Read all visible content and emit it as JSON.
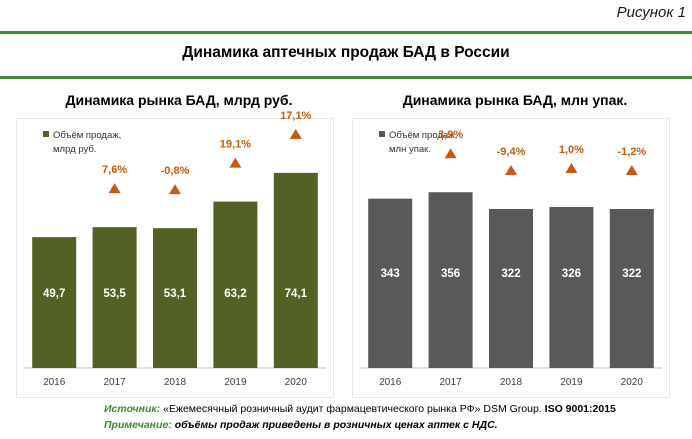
{
  "figure_label": "Рисунок 1",
  "main_title": "Динамика аптечных продаж БАД в России",
  "colors": {
    "rule": "#3f8a2e",
    "green_bar": "#546125",
    "gray_bar": "#595959",
    "marker": "#c55a11",
    "pct_text": "#c55a11",
    "footer_label": "#3f8a2e"
  },
  "chart_data": [
    {
      "type": "bar",
      "title": "Динамика рынка БАД, млрд руб.",
      "legend": [
        "Объём продаж,",
        "млрд руб."
      ],
      "legend_position": "top-left",
      "categories": [
        "2016",
        "2017",
        "2018",
        "2019",
        "2020"
      ],
      "values": [
        49.7,
        53.5,
        53.1,
        63.2,
        74.1
      ],
      "value_labels": [
        "49,7",
        "53,5",
        "53,1",
        "63,2",
        "74,1"
      ],
      "growth_labels": [
        "",
        "7,6%",
        "-0,8%",
        "19,1%",
        "17,1%"
      ],
      "bar_color": "#546125",
      "ylim": [
        0,
        90
      ],
      "grid": false
    },
    {
      "type": "bar",
      "title": "Динамика рынка БАД, млн упак.",
      "legend": [
        "Объём продаж,",
        "млн упак."
      ],
      "legend_position": "top-left",
      "categories": [
        "2016",
        "2017",
        "2018",
        "2019",
        "2020"
      ],
      "values": [
        343,
        356,
        322,
        326,
        322
      ],
      "value_labels": [
        "343",
        "356",
        "322",
        "326",
        "322"
      ],
      "growth_labels": [
        "",
        "3,9%",
        "-9,4%",
        "1,0%",
        "-1,2%"
      ],
      "bar_color": "#595959",
      "ylim": [
        0,
        480
      ],
      "grid": false
    }
  ],
  "footer": {
    "source_label": "Источник:",
    "source_text": " «Ежемесячный розничный аудит фармацевтического рынка РФ» DSM Group. ",
    "source_iso": "ISO 9001:2015",
    "note_label": "Примечание:",
    "note_text": " объёмы продаж приведены в розничных ценах аптек с НДС."
  }
}
